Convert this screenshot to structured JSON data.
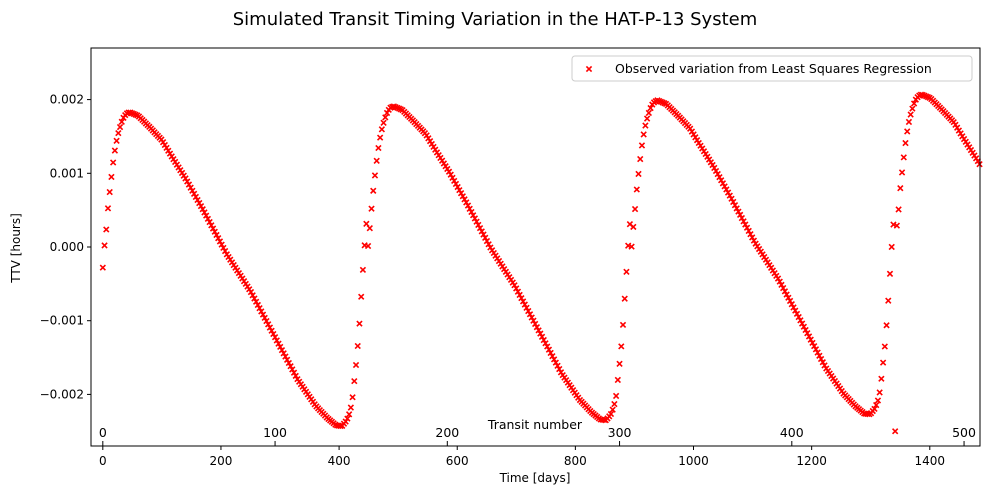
{
  "chart_data": {
    "type": "scatter",
    "title": "Simulated Transit Timing Variation in the HAT-P-13 System",
    "xlabel": "Time [days]",
    "ylabel": "TTV [hours]",
    "xlim": [
      -20,
      1485
    ],
    "ylim": [
      -0.0027,
      0.0027
    ],
    "x_ticks": [
      0,
      200,
      400,
      600,
      800,
      1000,
      1200,
      1400
    ],
    "y_ticks": [
      -0.002,
      -0.001,
      0.0,
      0.001,
      0.002
    ],
    "y_tick_labels": [
      "−0.002",
      "−0.001",
      "0.000",
      "0.001",
      "0.002"
    ],
    "grid": false,
    "legend_position": "top-right",
    "secondary_axis": {
      "label": "Transit number",
      "ticks": [
        0,
        100,
        200,
        300,
        400,
        500
      ],
      "days_per_transit": 2.916
    },
    "series": [
      {
        "name": "Observed variation from Least Squares Regression",
        "marker": "x",
        "color": "#ff0000",
        "cycle_period_days": 447.0,
        "x_step_days": 2.916,
        "x_start": 0,
        "x_end": 1485,
        "anchors": [
          [
            0,
            -0.00028
          ],
          [
            3,
            3e-05
          ],
          [
            6,
            0.00025
          ],
          [
            9,
            0.00055
          ],
          [
            12,
            0.00077
          ],
          [
            15,
            0.00098
          ],
          [
            18,
            0.00118
          ],
          [
            21,
            0.00134
          ],
          [
            24,
            0.00147
          ],
          [
            27,
            0.00157
          ],
          [
            30,
            0.00165
          ],
          [
            33,
            0.00172
          ],
          [
            36,
            0.00177
          ],
          [
            40,
            0.00181
          ],
          [
            45,
            0.00183
          ],
          [
            60,
            0.00178
          ],
          [
            80,
            0.00162
          ],
          [
            100,
            0.00145
          ],
          [
            115,
            0.00125
          ],
          [
            140,
            0.00093
          ],
          [
            170,
            0.0005
          ],
          [
            210,
            -0.0001
          ],
          [
            250,
            -0.0006
          ],
          [
            290,
            -0.0012
          ],
          [
            330,
            -0.0018
          ],
          [
            360,
            -0.00215
          ],
          [
            380,
            -0.00232
          ],
          [
            395,
            -0.00242
          ],
          [
            405,
            -0.00243
          ],
          [
            413,
            -0.00235
          ],
          [
            418,
            -0.00225
          ],
          [
            422,
            -0.0021
          ],
          [
            426,
            -0.0018
          ],
          [
            430,
            -0.0015
          ],
          [
            434,
            -0.0011
          ],
          [
            438,
            -0.0006
          ],
          [
            442,
            -0.0001
          ],
          [
            447,
            0.0004
          ],
          [
            452,
            0.0009
          ],
          [
            458,
            0.0013
          ],
          [
            465,
            0.0016
          ],
          [
            475,
            0.0018
          ],
          [
            485,
            0.00187
          ],
          [
            495,
            0.0019
          ]
        ]
      }
    ]
  }
}
